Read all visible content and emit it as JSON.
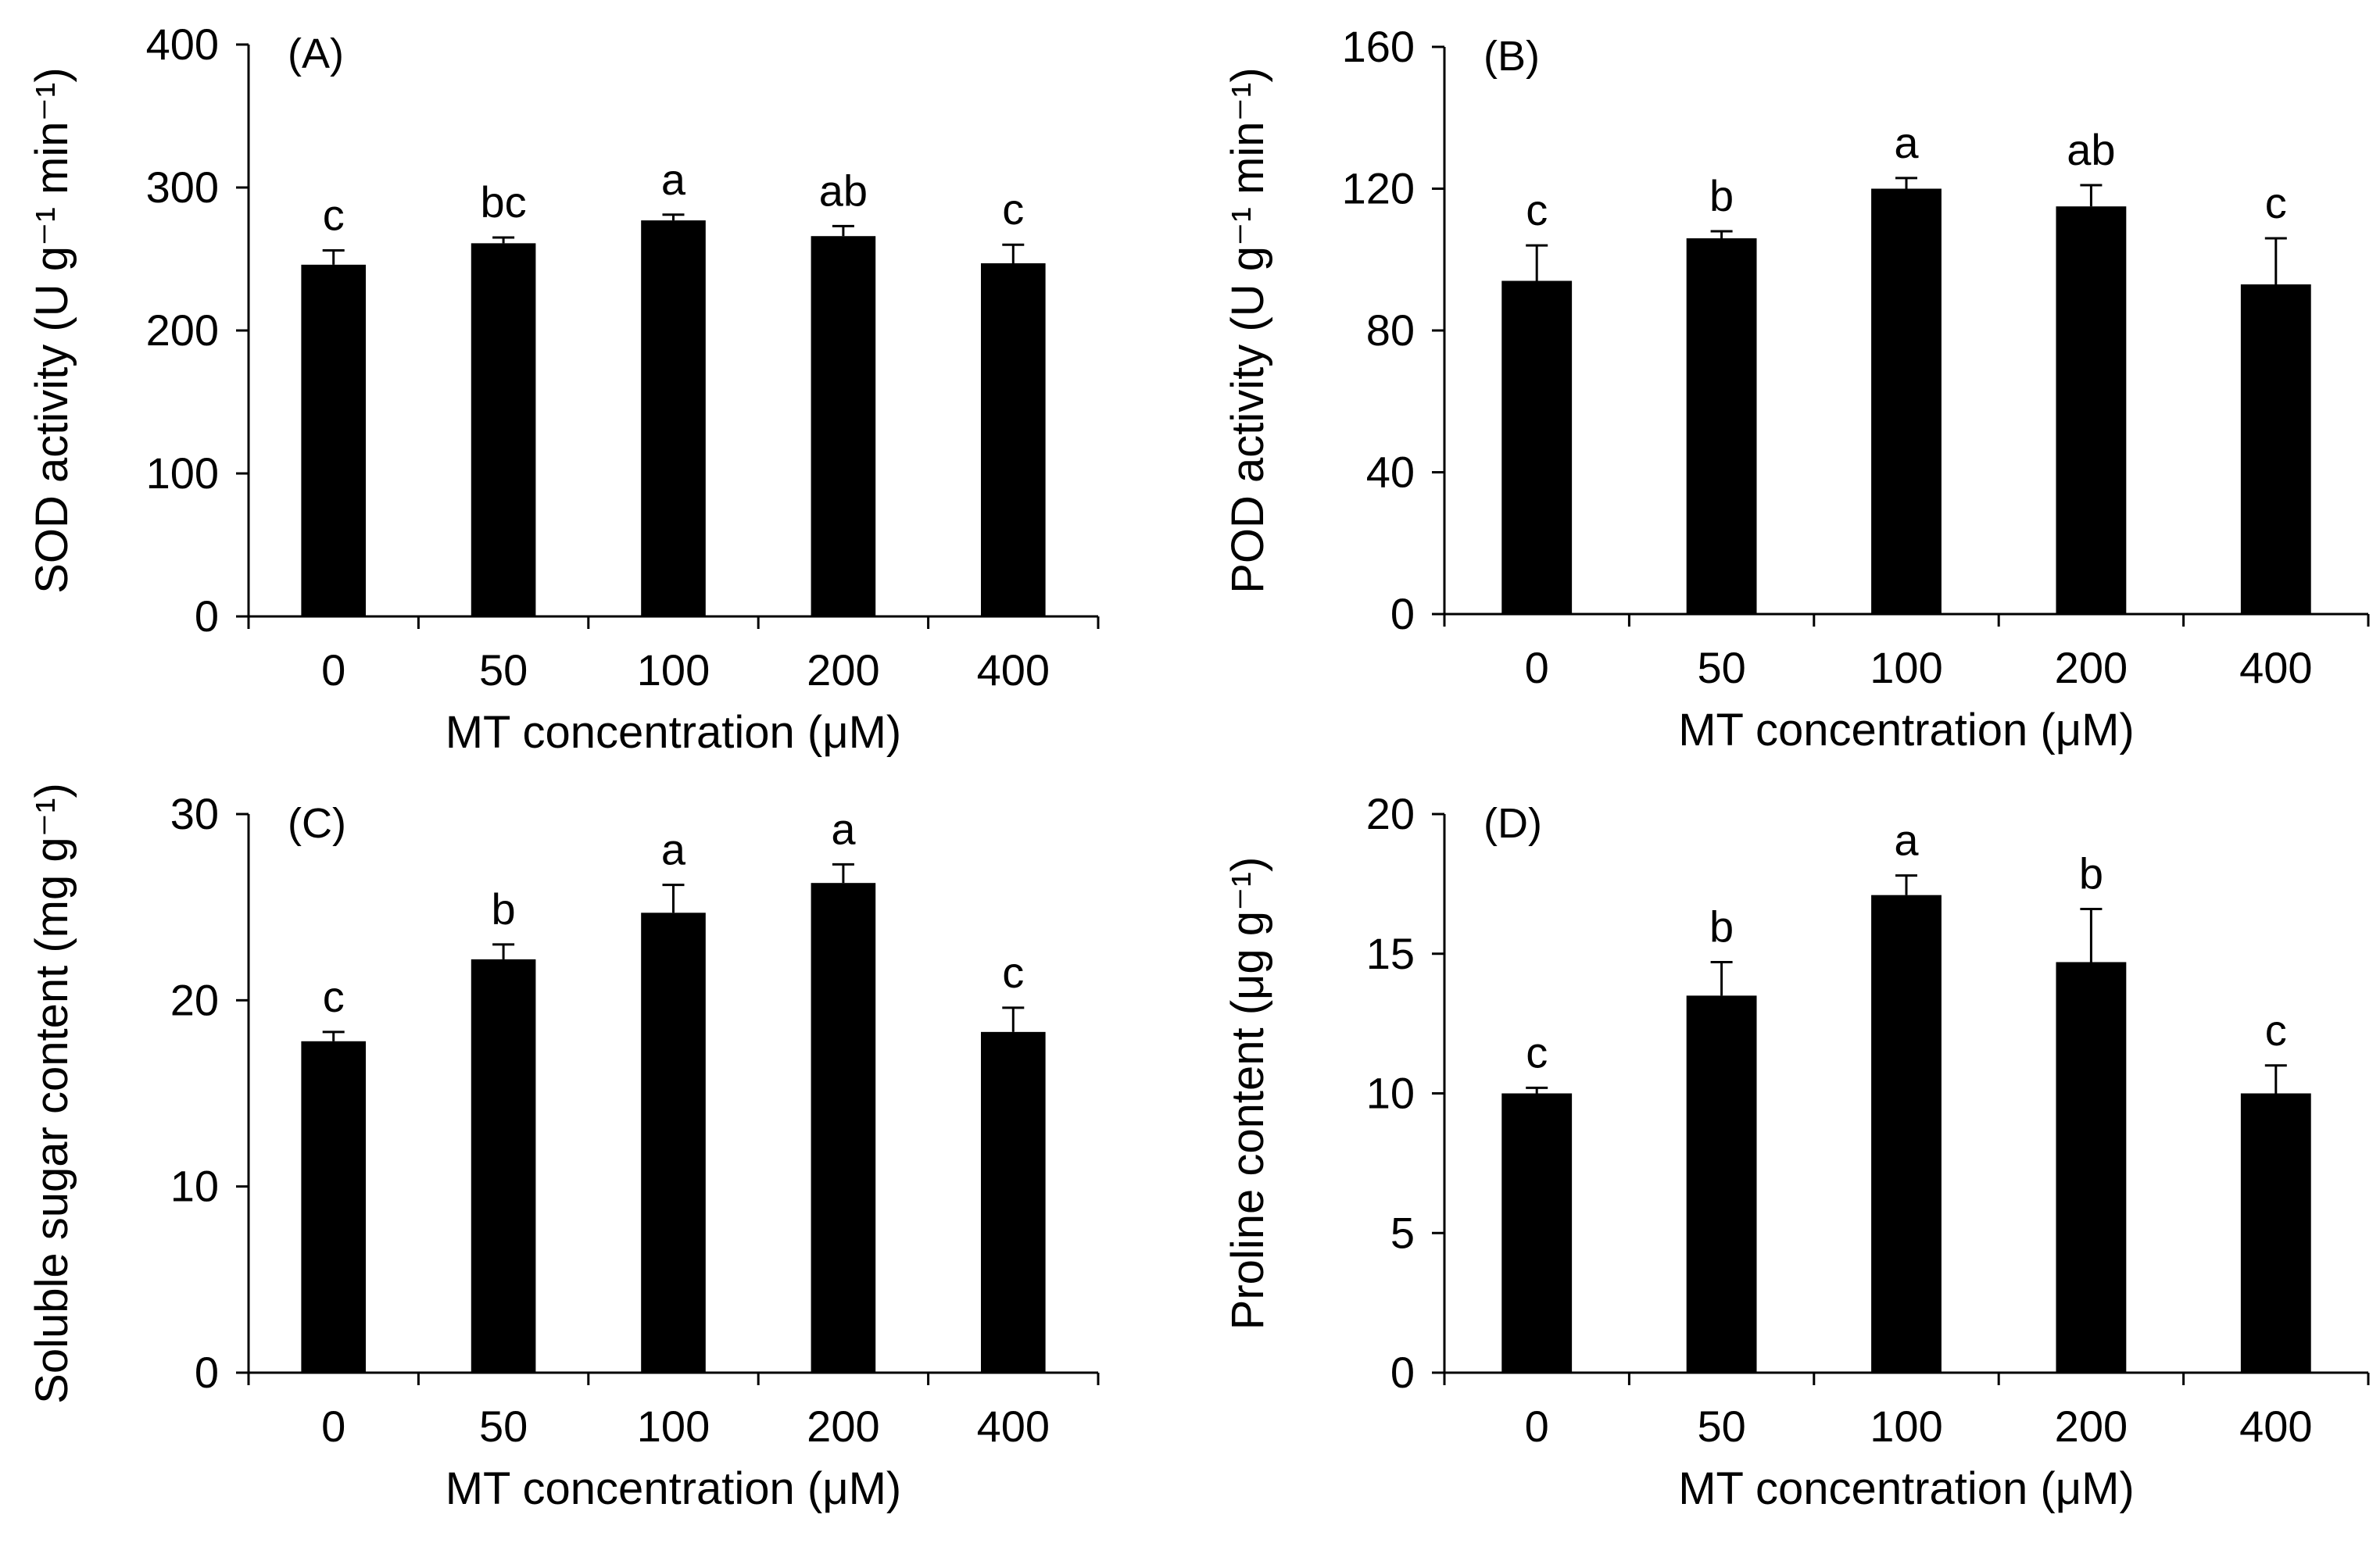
{
  "chart_data": [
    {
      "type": "bar",
      "panel_label": "(A)",
      "categories": [
        "0",
        "50",
        "100",
        "200",
        "400"
      ],
      "values": [
        246,
        261,
        277,
        266,
        247
      ],
      "errors": [
        10,
        4,
        4,
        7,
        13
      ],
      "significance": [
        "c",
        "bc",
        "a",
        "ab",
        "c"
      ],
      "xlabel": "MT concentration (μM)",
      "ylabel": "SOD activity (U g⁻¹ min⁻¹)",
      "ylim": [
        0,
        400
      ],
      "yticks": [
        "0",
        "100",
        "200",
        "300",
        "400"
      ],
      "bar_color": "#000000"
    },
    {
      "type": "bar",
      "panel_label": "(B)",
      "categories": [
        "0",
        "50",
        "100",
        "200",
        "400"
      ],
      "values": [
        94,
        106,
        120,
        115,
        93
      ],
      "errors": [
        10,
        2,
        3,
        6,
        13
      ],
      "significance": [
        "c",
        "b",
        "a",
        "ab",
        "c"
      ],
      "xlabel": "MT concentration (μM)",
      "ylabel": "POD activity (U g⁻¹ min⁻¹)",
      "ylim": [
        0,
        160
      ],
      "yticks": [
        "0",
        "40",
        "80",
        "120",
        "160"
      ],
      "bar_color": "#000000"
    },
    {
      "type": "bar",
      "panel_label": "(C)",
      "categories": [
        "0",
        "50",
        "100",
        "200",
        "400"
      ],
      "values": [
        17.8,
        22.2,
        24.7,
        26.3,
        18.3
      ],
      "errors": [
        0.5,
        0.8,
        1.5,
        1.0,
        1.3
      ],
      "significance": [
        "c",
        "b",
        "a",
        "a",
        "c"
      ],
      "xlabel": "MT concentration (μM)",
      "ylabel": "Soluble sugar content (mg g⁻¹)",
      "ylim": [
        0,
        30
      ],
      "yticks": [
        "0",
        "10",
        "20",
        "30"
      ],
      "bar_color": "#000000"
    },
    {
      "type": "bar",
      "panel_label": "(D)",
      "categories": [
        "0",
        "50",
        "100",
        "200",
        "400"
      ],
      "values": [
        10.0,
        13.5,
        17.1,
        14.7,
        10.0
      ],
      "errors": [
        0.2,
        1.2,
        0.7,
        1.9,
        1.0
      ],
      "significance": [
        "c",
        "b",
        "a",
        "b",
        "c"
      ],
      "xlabel": "MT concentration (μM)",
      "ylabel": "Proline content (μg g⁻¹)",
      "ylim": [
        0,
        20
      ],
      "yticks": [
        "0",
        "5",
        "10",
        "15",
        "20"
      ],
      "bar_color": "#000000"
    }
  ]
}
